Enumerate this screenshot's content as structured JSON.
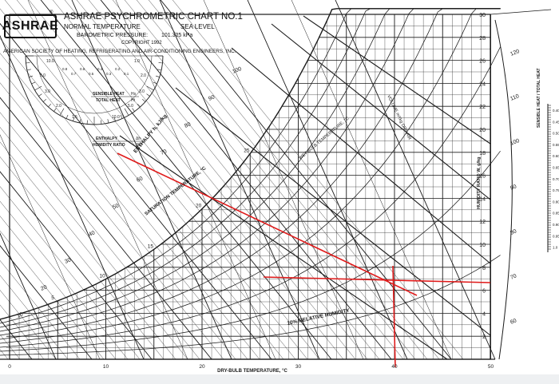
{
  "header": {
    "logo_text": "ASHRAE",
    "registered_mark": "®",
    "title": "ASHRAE PSYCHROMETRIC CHART NO.1",
    "normal_temperature": "NORMAL TEMPERATURE",
    "sea_level": "SEA LEVEL",
    "barometric_label": "BAROMETRIC PRESSURE:",
    "barometric_value": "101.325 kPa",
    "copyright": "COPYRIGHT 1992",
    "society": "AMERICAN SOCIETY OF HEATING, REFRIGERATING AND AIR-CONDITIONING ENGINEERS, INC."
  },
  "protractor": {
    "sensible_heat_label": "SENSIBLE HEAT",
    "total_heat_label": "TOTAL HEAT",
    "hs_symbol": "Hs",
    "ht_symbol": "Ht",
    "enthalpy_label": "ENTHALPY",
    "humidity_ratio_label": "HUMIDITY RATIO",
    "delta_h": "Δh",
    "delta_w": "ΔW",
    "left_scale": [
      "10.0",
      "5.0",
      "3.0",
      "2.0",
      "1.5"
    ],
    "right_scale": [
      "1.0",
      "2.0",
      "3.0",
      "5.0",
      "10.0"
    ],
    "inner_scale": [
      "0.8",
      "0.7",
      "0.6",
      "0.5",
      "0.4",
      "0.3",
      "0.2",
      "0.1"
    ]
  },
  "axes": {
    "dry_bulb_label": "DRY-BULB TEMPERATURE, °C",
    "dry_bulb_ticks": [
      "0",
      "10",
      "20",
      "30",
      "40",
      "50"
    ],
    "humidity_ratio_label": "HUMIDITY RATIO W, g/kg",
    "humidity_ratio_ticks": [
      "2",
      "4",
      "6",
      "8",
      "10",
      "12",
      "14",
      "16",
      "18",
      "20",
      "22",
      "24",
      "26",
      "28",
      "30"
    ],
    "enthalpy_label": "ENTHALPY h, kJ/kg",
    "enthalpy_ticks": [
      "10",
      "20",
      "30",
      "40",
      "50",
      "60",
      "70",
      "80",
      "90",
      "100"
    ],
    "saturation_label": "SATURATION TEMPERATURE, °C",
    "saturation_ticks": [
      "5",
      "10",
      "15",
      "20",
      "25"
    ],
    "right_enthalpy_ticks": [
      "60",
      "70",
      "80",
      "90",
      "100",
      "110",
      "120"
    ],
    "shr_label": "SENSIBLE HEAT / TOTAL HEAT",
    "shr_ticks": [
      "0.40",
      "0.45",
      "0.50",
      "0.55",
      "0.60",
      "0.65",
      "0.70",
      "0.75",
      "0.80",
      "0.85",
      "0.90",
      "0.95",
      "1.0"
    ]
  },
  "annotations": {
    "relative_humidity": "10% RELATIVE HUMIDITY",
    "wet_bulb": "WET BULB TEMPERATURE, °C",
    "volume": "VOLUME m³/kg DRY AIR"
  },
  "colors": {
    "grid": "#1a1a1a",
    "highlight": "#e01b1b",
    "footer": "#eef0f2"
  }
}
